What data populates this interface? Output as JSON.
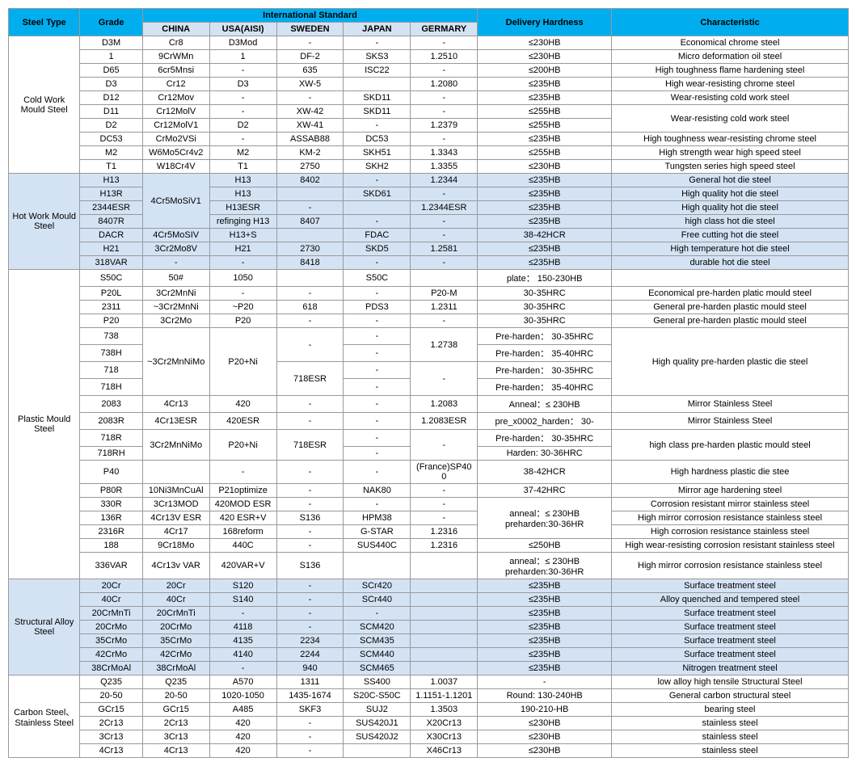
{
  "header": {
    "steelType": "Steel Type",
    "grade": "Grade",
    "intl": "International Standard",
    "china": "CHINA",
    "usa": "USA(AISI)",
    "sweden": "SWEDEN",
    "japan": "JAPAN",
    "germany": "GERMARY",
    "hardness": "Delivery Hardness",
    "char": "Characteristic"
  },
  "colors": {
    "header_bg": "#00aeef",
    "sub_header_bg": "#d4e3f4",
    "border": "#999",
    "text": "#000"
  },
  "groups": [
    {
      "name": "Cold Work Mould Steel",
      "rows": [
        {
          "grade": "D3M",
          "china": "Cr8",
          "usa": "D3Mod",
          "sweden": "-",
          "japan": "-",
          "germany": "-",
          "hard": "≤230HB",
          "char": "Economical chrome steel"
        },
        {
          "grade": "1",
          "china": "9CrWMn",
          "usa": "1",
          "sweden": "DF-2",
          "japan": "SKS3",
          "germany": "1.2510",
          "hard": "≤230HB",
          "char": "Micro deformation oil steel"
        },
        {
          "grade": "D65",
          "china": "6cr5Mnsi",
          "usa": "-",
          "sweden": "635",
          "japan": "ISC22",
          "germany": "-",
          "hard": "≤200HB",
          "char": "High toughness flame hardening steel"
        },
        {
          "grade": "D3",
          "china": "Cr12",
          "usa": "D3",
          "sweden": "XW-5",
          "japan": "",
          "germany": "1.2080",
          "hard": "≤235HB",
          "char": "High wear-resisting chrome steel"
        },
        {
          "grade": "D12",
          "china": "Cr12Mov",
          "usa": "-",
          "sweden": "-",
          "japan": "SKD11",
          "germany": "-",
          "hard": "≤235HB",
          "char": "Wear-resisting cold work steel"
        },
        {
          "grade": "D11",
          "china": "Cr12MolV",
          "usa": "-",
          "sweden": "XW-42",
          "japan": "SKD11",
          "germany": "-",
          "hard": "≤255HB",
          "char": "Wear-resisting cold work steel",
          "charRowspan": 2
        },
        {
          "grade": "D2",
          "china": "Cr12MolV1",
          "usa": "D2",
          "sweden": "XW-41",
          "japan": "-",
          "germany": "1.2379",
          "hard": "≤255HB"
        },
        {
          "grade": "DC53",
          "china": "CrMo2VSi",
          "usa": "-",
          "sweden": "ASSAB88",
          "japan": "DC53",
          "germany": "-",
          "hard": "≤235HB",
          "char": "High toughness wear-resisting chrome steel"
        },
        {
          "grade": "M2",
          "china": "W6Mo5Cr4v2",
          "usa": "M2",
          "sweden": "KM-2",
          "japan": "SKH51",
          "germany": "1.3343",
          "hard": "≤255HB",
          "char": "High strength wear high speed steel"
        },
        {
          "grade": "T1",
          "china": "W18Cr4V",
          "usa": "T1",
          "sweden": "2750",
          "japan": "SKH2",
          "germany": "1.3355",
          "hard": "≤230HB",
          "char": "Tungsten series high speed steel"
        }
      ]
    },
    {
      "name": "Hot Work Mould Steel",
      "alt": true,
      "rows": [
        {
          "grade": "H13",
          "china": "4Cr5MoSiV1",
          "chinaRowspan": 4,
          "usa": "H13",
          "sweden": "8402",
          "japan": "-",
          "germany": "1.2344",
          "hard": "≤235HB",
          "char": "General hot die steel"
        },
        {
          "grade": "H13R",
          "usa": "H13",
          "sweden": "",
          "japan": "SKD61",
          "germany": "-",
          "hard": "≤235HB",
          "char": "High quality hot die steel"
        },
        {
          "grade": "2344ESR",
          "usa": "H13ESR",
          "sweden": "-",
          "japan": "",
          "germany": "1.2344ESR",
          "hard": "≤235HB",
          "char": "High quality hot die steel"
        },
        {
          "grade": "8407R",
          "usa": "refinging H13",
          "sweden": "8407",
          "japan": "-",
          "germany": "-",
          "hard": "≤235HB",
          "char": "high class hot die steel"
        },
        {
          "grade": "DACR",
          "china": "4Cr5MoSIV",
          "usa": "H13+S",
          "sweden": "",
          "japan": "FDAC",
          "germany": "-",
          "hard": "38-42HCR",
          "char": "Free cutting hot die steel"
        },
        {
          "grade": "H21",
          "china": "3Cr2Mo8V",
          "usa": "H21",
          "sweden": "2730",
          "japan": "SKD5",
          "germany": "1.2581",
          "hard": "≤235HB",
          "char": "High temperature hot die steel"
        },
        {
          "grade": "318VAR",
          "china": "-",
          "usa": "-",
          "sweden": "8418",
          "japan": "-",
          "germany": "-",
          "hard": "≤235HB",
          "char": "durable hot die steel"
        }
      ]
    },
    {
      "name": "Plastic Mould Steel",
      "rows": [
        {
          "grade": "S50C",
          "china": "50#",
          "usa": "1050",
          "sweden": "",
          "japan": "S50C",
          "germany": "",
          "hard": "plate： 150-230HB",
          "char": ""
        },
        {
          "grade": "P20L",
          "china": "3Cr2MnNi",
          "usa": "-",
          "sweden": "-",
          "japan": "-",
          "germany": "P20-M",
          "hard": "30-35HRC",
          "char": "Economical pre-harden platic mould steel"
        },
        {
          "grade": "2311",
          "china": "~3Cr2MnNi",
          "usa": "~P20",
          "sweden": "618",
          "japan": "PDS3",
          "germany": "1.2311",
          "hard": "30-35HRC",
          "char": "General pre-harden plastic mould steel"
        },
        {
          "grade": "P20",
          "china": "3Cr2Mo",
          "usa": "P20",
          "sweden": "-",
          "japan": "-",
          "germany": "-",
          "hard": "30-35HRC",
          "char": "General pre-harden plastic mould steel"
        },
        {
          "grade": "738",
          "china": "~3Cr2MnNiMo",
          "chinaRowspan": 4,
          "usa": "P20+Ni",
          "usaRowspan": 4,
          "sweden": "-",
          "swedenRowspan": 2,
          "japan": "-",
          "germany": "1.2738",
          "germanyRowspan": 2,
          "hard": "Pre-harden： 30-35HRC",
          "char": "High quality pre-harden plastic die steel",
          "charRowspan": 4
        },
        {
          "grade": "738H",
          "japan": "-",
          "hard": "Pre-harden： 35-40HRC"
        },
        {
          "grade": "718",
          "sweden": "718ESR",
          "swedenRowspan": 2,
          "japan": "-",
          "germany": "-",
          "germanyRowspan": 2,
          "hard": "Pre-harden： 30-35HRC"
        },
        {
          "grade": "718H",
          "japan": "-",
          "hard": "Pre-harden： 35-40HRC"
        },
        {
          "grade": "2083",
          "china": "4Cr13",
          "usa": "420",
          "sweden": "-",
          "japan": "-",
          "germany": "1.2083",
          "hard": "Anneal：≤ 230HB",
          "char": "Mirror Stainless Steel"
        },
        {
          "grade": "2083R",
          "china": "4Cr13ESR",
          "usa": "420ESR",
          "sweden": "-",
          "japan": "-",
          "germany": "1.2083ESR",
          "hard": "pre_x0002_harden： 30-",
          "char": "Mirror Stainless Steel"
        },
        {
          "grade": "718R",
          "china": "3Cr2MnNiMo",
          "chinaRowspan": 2,
          "usa": "P20+Ni",
          "usaRowspan": 2,
          "sweden": "718ESR",
          "swedenRowspan": 2,
          "japan": "-",
          "germany": "-",
          "germanyRowspan": 2,
          "hard": "Pre-harden： 30-35HRC",
          "char": "high class pre-harden plastic mould steel",
          "charRowspan": 2
        },
        {
          "grade": "718RH",
          "japan": "-",
          "hard": "Harden: 30-36HRC"
        },
        {
          "grade": "P40",
          "china": "",
          "usa": "-",
          "sweden": "-",
          "japan": "-",
          "germany": "(France)SP400",
          "hard": "38-42HCR",
          "char": "High hardness plastic die stee"
        },
        {
          "grade": "P80R",
          "china": "10Ni3MnCuAl",
          "usa": "P21optimize",
          "sweden": "-",
          "japan": "NAK80",
          "germany": "-",
          "hard": "37-42HRC",
          "char": "Mirror age hardening steel"
        },
        {
          "grade": "330R",
          "china": "3Cr13MOD",
          "usa": "420MOD ESR",
          "sweden": "-",
          "japan": "-",
          "germany": "-",
          "hard": "anneal：≤ 230HB preharden:30-36HR",
          "hardRowspan": 3,
          "char": "Corrosion resistant mirror stainless steel"
        },
        {
          "grade": "136R",
          "china": "4Cr13V ESR",
          "usa": "420 ESR+V",
          "sweden": "S136",
          "japan": "HPM38",
          "germany": "-",
          "char": "High mirror corrosion resistance stainless steel"
        },
        {
          "grade": "2316R",
          "china": "4Cr17",
          "usa": "168reform",
          "sweden": "-",
          "japan": "G-STAR",
          "germany": "1.2316",
          "char": "High corrosion resistance stainless steel"
        },
        {
          "grade": "188",
          "china": "9Cr18Mo",
          "usa": "440C",
          "sweden": "-",
          "japan": "SUS440C",
          "germany": "1.2316",
          "hard": "≤250HB",
          "char": "High wear-resisting corrosion resistant stainless steel"
        },
        {
          "grade": "336VAR",
          "china": "4Cr13v VAR",
          "usa": "420VAR+V",
          "sweden": "S136",
          "japan": "",
          "germany": "",
          "hard": "anneal：≤ 230HB preharden:30-36HR",
          "char": "High mirror corrosion resistance stainless steel"
        }
      ]
    },
    {
      "name": "Structural Alloy Steel",
      "alt": true,
      "rows": [
        {
          "grade": "20Cr",
          "china": "20Cr",
          "usa": "S120",
          "sweden": "-",
          "japan": "SCr420",
          "germany": "",
          "hard": "≤235HB",
          "char": "Surface treatment steel"
        },
        {
          "grade": "40Cr",
          "china": "40Cr",
          "usa": "S140",
          "sweden": "-",
          "japan": "SCr440",
          "germany": "",
          "hard": "≤235HB",
          "char": "Alloy quenched and tempered steel"
        },
        {
          "grade": "20CrMnTi",
          "china": "20CrMnTi",
          "usa": "-",
          "sweden": "-",
          "japan": "-",
          "germany": "",
          "hard": "≤235HB",
          "char": "Surface treatment steel"
        },
        {
          "grade": "20CrMo",
          "china": "20CrMo",
          "usa": "4118",
          "sweden": "-",
          "japan": "SCM420",
          "germany": "",
          "hard": "≤235HB",
          "char": "Surface treatment steel"
        },
        {
          "grade": "35CrMo",
          "china": "35CrMo",
          "usa": "4135",
          "sweden": "2234",
          "japan": "SCM435",
          "germany": "",
          "hard": "≤235HB",
          "char": "Surface treatment steel"
        },
        {
          "grade": "42CrMo",
          "china": "42CrMo",
          "usa": "4140",
          "sweden": "2244",
          "japan": "SCM440",
          "germany": "",
          "hard": "≤235HB",
          "char": "Surface treatment steel"
        },
        {
          "grade": "38CrMoAl",
          "china": "38CrMoAl",
          "usa": "-",
          "sweden": "940",
          "japan": "SCM465",
          "germany": "",
          "hard": "≤235HB",
          "char": "Nitrogen treatment steel"
        }
      ]
    },
    {
      "name": "Carbon Steel、Stainless Steel",
      "rows": [
        {
          "grade": "Q235",
          "china": "Q235",
          "usa": "A570",
          "sweden": "1311",
          "japan": "SS400",
          "germany": "1.0037",
          "hard": "-",
          "char": "low alloy high tensile Structural Steel"
        },
        {
          "grade": "20-50",
          "china": "20-50",
          "usa": "1020-1050",
          "sweden": "1435-1674",
          "japan": "S20C-S50C",
          "germany": "1.1151-1.1201",
          "hard": "Round: 130-240HB",
          "char": "General carbon structural steel"
        },
        {
          "grade": "GCr15",
          "china": "GCr15",
          "usa": "A485",
          "sweden": "SKF3",
          "japan": "SUJ2",
          "germany": "1.3503",
          "hard": "190-210-HB",
          "char": "bearing steel"
        },
        {
          "grade": "2Cr13",
          "china": "2Cr13",
          "usa": "420",
          "sweden": "-",
          "japan": "SUS420J1",
          "germany": "X20Cr13",
          "hard": "≤230HB",
          "char": "stainless steel"
        },
        {
          "grade": "3Cr13",
          "china": "3Cr13",
          "usa": "420",
          "sweden": "-",
          "japan": "SUS420J2",
          "germany": "X30Cr13",
          "hard": "≤230HB",
          "char": "stainless steel"
        },
        {
          "grade": "4Cr13",
          "china": "4Cr13",
          "usa": "420",
          "sweden": "-",
          "japan": "",
          "germany": "X46Cr13",
          "hard": "≤230HB",
          "char": "stainless steel"
        }
      ]
    }
  ]
}
